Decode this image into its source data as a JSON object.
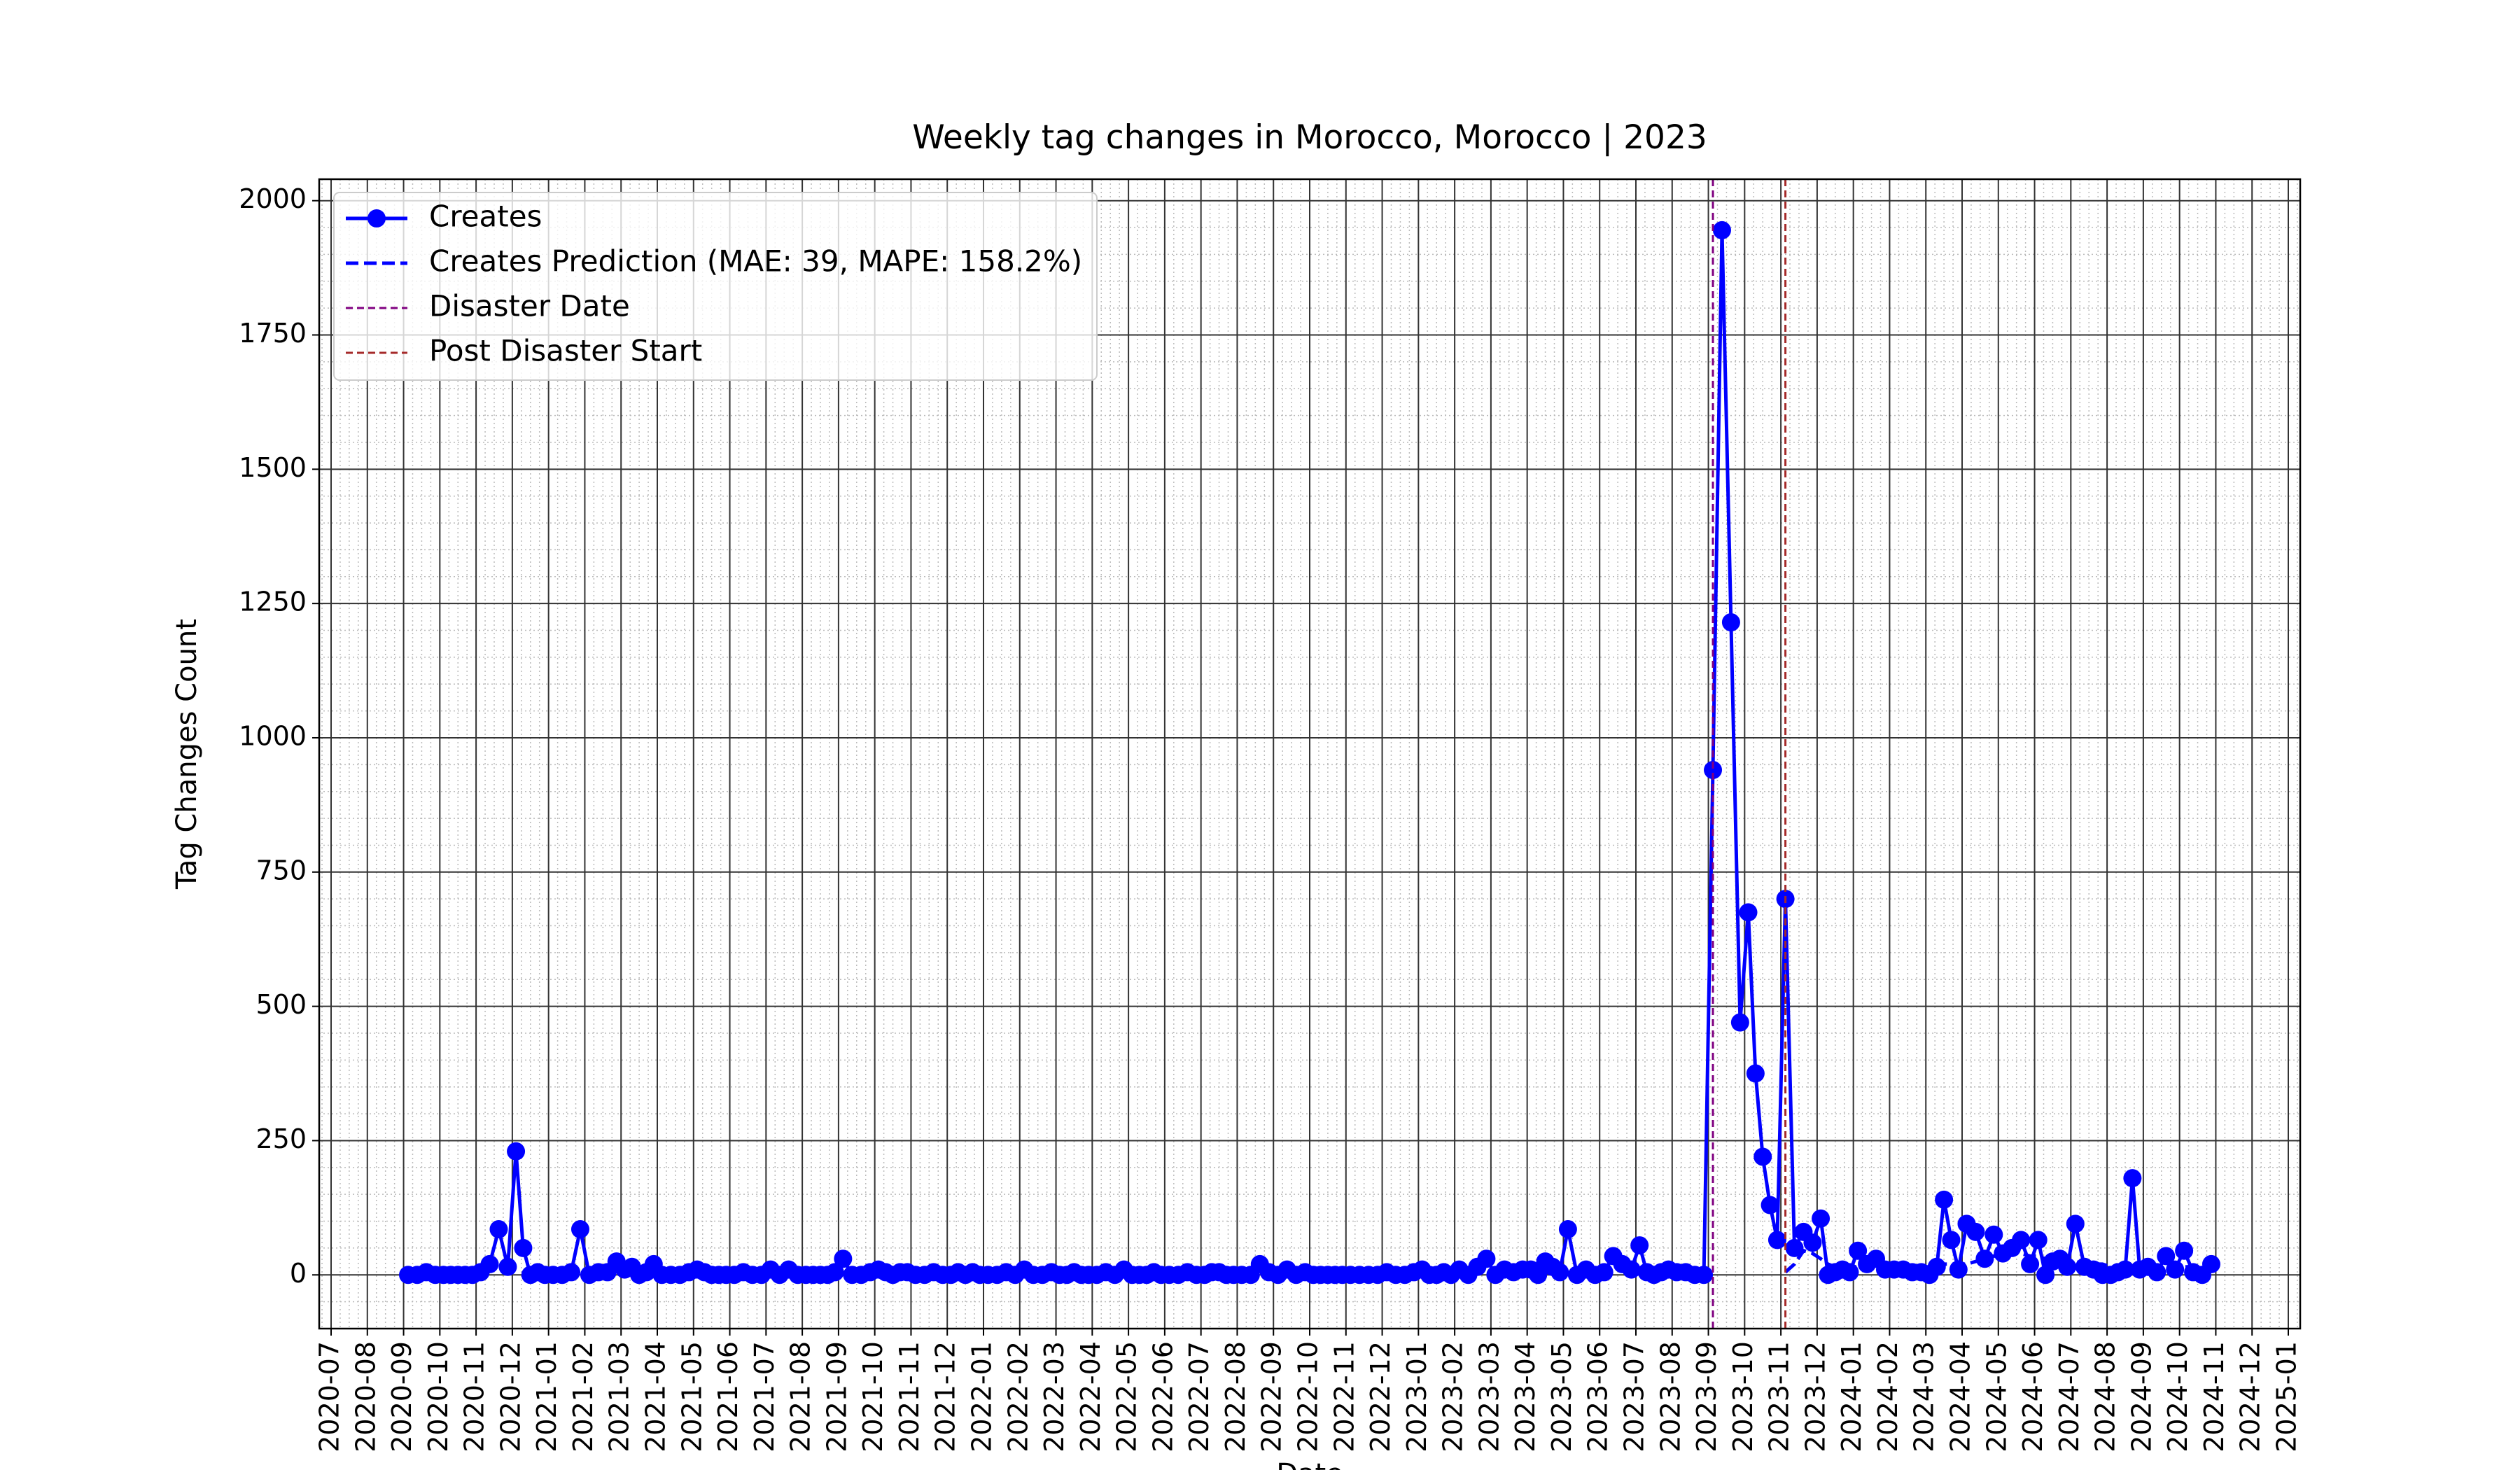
{
  "chart_data": {
    "type": "line",
    "title": "Weekly tag changes in Morocco, Morocco | 2023",
    "xlabel": "Date",
    "ylabel": "Tag Changes Count",
    "x": [
      "2020-09",
      "2020-09",
      "2020-09",
      "2020-09",
      "2020-10",
      "2020-10",
      "2020-10",
      "2020-10",
      "2020-10",
      "2020-11",
      "2020-11",
      "2020-11",
      "2020-11",
      "2020-12",
      "2020-12",
      "2020-12",
      "2020-12",
      "2020-12",
      "2021-01",
      "2021-01",
      "2021-01",
      "2021-01",
      "2021-02",
      "2021-02",
      "2021-02",
      "2021-02",
      "2021-03",
      "2021-03",
      "2021-03",
      "2021-03",
      "2021-03",
      "2021-04",
      "2021-04",
      "2021-04",
      "2021-04",
      "2021-05",
      "2021-05",
      "2021-05",
      "2021-05",
      "2021-05",
      "2021-06",
      "2021-06",
      "2021-06",
      "2021-06",
      "2021-07",
      "2021-07",
      "2021-07",
      "2021-07",
      "2021-08",
      "2021-08",
      "2021-08",
      "2021-08",
      "2021-08",
      "2021-09",
      "2021-09",
      "2021-09",
      "2021-09",
      "2021-10",
      "2021-10",
      "2021-10",
      "2021-10",
      "2021-10",
      "2021-11",
      "2021-11",
      "2021-11",
      "2021-11",
      "2021-12",
      "2021-12",
      "2021-12",
      "2021-12",
      "2021-12",
      "2022-01",
      "2022-01",
      "2022-01",
      "2022-01",
      "2022-02",
      "2022-02",
      "2022-02",
      "2022-02",
      "2022-03",
      "2022-03",
      "2022-03",
      "2022-03",
      "2022-03",
      "2022-04",
      "2022-04",
      "2022-04",
      "2022-04",
      "2022-05",
      "2022-05",
      "2022-05",
      "2022-05",
      "2022-05",
      "2022-06",
      "2022-06",
      "2022-06",
      "2022-06",
      "2022-07",
      "2022-07",
      "2022-07",
      "2022-07",
      "2022-07",
      "2022-08",
      "2022-08",
      "2022-08",
      "2022-08",
      "2022-09",
      "2022-09",
      "2022-09",
      "2022-09",
      "2022-10",
      "2022-10",
      "2022-10",
      "2022-10",
      "2022-10",
      "2022-11",
      "2022-11",
      "2022-11",
      "2022-11",
      "2022-12",
      "2022-12",
      "2022-12",
      "2022-12",
      "2023-01",
      "2023-01",
      "2023-01",
      "2023-01",
      "2023-01",
      "2023-02",
      "2023-02",
      "2023-02",
      "2023-02",
      "2023-03",
      "2023-03",
      "2023-03",
      "2023-03",
      "2023-04",
      "2023-04",
      "2023-04",
      "2023-04",
      "2023-04",
      "2023-05",
      "2023-05",
      "2023-05",
      "2023-05",
      "2023-06",
      "2023-06",
      "2023-06",
      "2023-06",
      "2023-07",
      "2023-07",
      "2023-07",
      "2023-07",
      "2023-07",
      "2023-08",
      "2023-08",
      "2023-08",
      "2023-08",
      "2023-09",
      "2023-09",
      "2023-09",
      "2023-09",
      "2023-10",
      "2023-10",
      "2023-10",
      "2023-10",
      "2023-10",
      "2023-11",
      "2023-11",
      "2023-11",
      "2023-11",
      "2023-12",
      "2023-12",
      "2023-12",
      "2023-12",
      "2023-12",
      "2024-01",
      "2024-01",
      "2024-01",
      "2024-01",
      "2024-02",
      "2024-02",
      "2024-02",
      "2024-02",
      "2024-03",
      "2024-03",
      "2024-03",
      "2024-03",
      "2024-03",
      "2024-04",
      "2024-04",
      "2024-04",
      "2024-04",
      "2024-05",
      "2024-05",
      "2024-05",
      "2024-05",
      "2024-06",
      "2024-06",
      "2024-06",
      "2024-06",
      "2024-06",
      "2024-07",
      "2024-07",
      "2024-07",
      "2024-07",
      "2024-08",
      "2024-08",
      "2024-08",
      "2024-08",
      "2024-08",
      "2024-09",
      "2024-09",
      "2024-09",
      "2024-09",
      "2024-10",
      "2024-10",
      "2024-10",
      "2024-10"
    ],
    "series": [
      {
        "name": "Creates",
        "color": "blue",
        "style": "solid",
        "marker": true,
        "values": [
          0,
          0,
          5,
          0,
          0,
          0,
          0,
          0,
          0,
          5,
          20,
          85,
          15,
          230,
          50,
          0,
          5,
          0,
          0,
          0,
          5,
          85,
          0,
          5,
          5,
          25,
          10,
          15,
          0,
          5,
          20,
          0,
          0,
          0,
          5,
          10,
          5,
          0,
          0,
          0,
          0,
          5,
          0,
          0,
          10,
          0,
          10,
          0,
          0,
          0,
          0,
          0,
          5,
          30,
          0,
          0,
          5,
          10,
          5,
          0,
          5,
          5,
          0,
          0,
          5,
          0,
          0,
          5,
          0,
          5,
          0,
          0,
          0,
          5,
          0,
          10,
          0,
          0,
          5,
          0,
          0,
          5,
          0,
          0,
          0,
          5,
          0,
          10,
          0,
          0,
          0,
          5,
          0,
          0,
          0,
          5,
          0,
          0,
          5,
          5,
          0,
          0,
          0,
          0,
          20,
          5,
          0,
          10,
          0,
          5,
          0,
          0,
          0,
          0,
          0,
          0,
          0,
          0,
          0,
          5,
          0,
          0,
          5,
          10,
          0,
          0,
          5,
          0,
          10,
          0,
          15,
          30,
          0,
          10,
          5,
          10,
          10,
          0,
          25,
          15,
          5,
          85,
          0,
          10,
          0,
          5,
          35,
          20,
          10,
          55,
          5,
          0,
          5,
          10,
          5,
          5,
          0,
          0,
          940,
          1945,
          1215,
          470,
          675,
          375,
          220,
          130,
          65,
          700,
          50,
          80,
          60,
          105,
          0,
          5,
          10,
          5,
          45,
          20,
          30,
          10,
          10,
          10,
          5,
          5,
          0,
          15,
          140,
          65,
          10,
          95,
          80,
          30,
          75,
          40,
          50,
          65,
          20,
          65,
          0,
          25,
          30,
          15,
          95,
          15,
          10,
          0,
          0,
          5,
          10,
          180,
          10,
          15,
          5,
          35,
          10,
          45,
          5,
          0,
          20
        ]
      },
      {
        "name": "Creates Prediction (MAE: 39, MAPE: 158.2%)",
        "color": "blue",
        "style": "dashed",
        "marker": false,
        "x": [
          "2023-11",
          "2023-11",
          "2023-11",
          "2023-11",
          "2023-12",
          "2023-12",
          "2023-12",
          "2023-12",
          "2023-12",
          "2024-01",
          "2024-01",
          "2024-01",
          "2024-01",
          "2024-02",
          "2024-02",
          "2024-02",
          "2024-02",
          "2024-03",
          "2024-03",
          "2024-03",
          "2024-03",
          "2024-03",
          "2024-04",
          "2024-04",
          "2024-04",
          "2024-04",
          "2024-05",
          "2024-05",
          "2024-05",
          "2024-05",
          "2024-06",
          "2024-06",
          "2024-06",
          "2024-06",
          "2024-06",
          "2024-07",
          "2024-07",
          "2024-07",
          "2024-07",
          "2024-08",
          "2024-08",
          "2024-08",
          "2024-08",
          "2024-08",
          "2024-09",
          "2024-09",
          "2024-09",
          "2024-09",
          "2024-10",
          "2024-10",
          "2024-10",
          "2024-10"
        ],
        "values": [
          5,
          20,
          45,
          40,
          30,
          20,
          15,
          15,
          15,
          15,
          15,
          15,
          15,
          15,
          15,
          15,
          15,
          15,
          15,
          20,
          20,
          20,
          20,
          25,
          30,
          35,
          35,
          40,
          40,
          35,
          35,
          30,
          30,
          25,
          25,
          25,
          20,
          20,
          20,
          15,
          15,
          15,
          15,
          15,
          15,
          15,
          15,
          15,
          15,
          15,
          15,
          15
        ]
      }
    ],
    "vlines": [
      {
        "name": "Disaster Date",
        "color": "purple",
        "x": "2023-09"
      },
      {
        "name": "Post Disaster Start",
        "color": "brown",
        "x": "2023-11"
      }
    ],
    "xlim": [
      "2020-07",
      "2025-01"
    ],
    "xticks": [
      "2020-07",
      "2020-08",
      "2020-09",
      "2020-10",
      "2020-11",
      "2020-12",
      "2021-01",
      "2021-02",
      "2021-03",
      "2021-04",
      "2021-05",
      "2021-06",
      "2021-07",
      "2021-08",
      "2021-09",
      "2021-10",
      "2021-11",
      "2021-12",
      "2022-01",
      "2022-02",
      "2022-03",
      "2022-04",
      "2022-05",
      "2022-06",
      "2022-07",
      "2022-08",
      "2022-09",
      "2022-10",
      "2022-11",
      "2022-12",
      "2023-01",
      "2023-02",
      "2023-03",
      "2023-04",
      "2023-05",
      "2023-06",
      "2023-07",
      "2023-08",
      "2023-09",
      "2023-10",
      "2023-11",
      "2023-12",
      "2024-01",
      "2024-02",
      "2024-03",
      "2024-04",
      "2024-05",
      "2024-06",
      "2024-07",
      "2024-08",
      "2024-09",
      "2024-10",
      "2024-11",
      "2024-12",
      "2025-01"
    ],
    "ylim": [
      -100,
      2040
    ],
    "yticks": [
      0,
      250,
      500,
      750,
      1000,
      1250,
      1500,
      1750,
      2000
    ],
    "yminor_step": 50,
    "grid": true,
    "legend": "upper left"
  }
}
